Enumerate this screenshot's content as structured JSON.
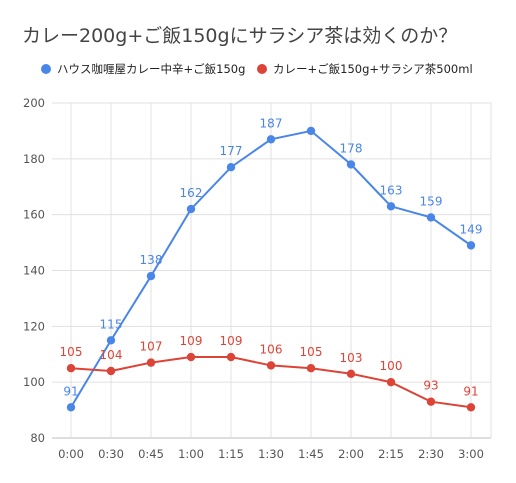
{
  "chart_data": {
    "type": "line",
    "title": "カレー200g+ご飯150gにサラシア茶は効くのか？",
    "xlabel": "",
    "ylabel": "",
    "categories": [
      "0:00",
      "0:30",
      "0:45",
      "1:00",
      "1:15",
      "1:30",
      "1:45",
      "2:00",
      "2:15",
      "2:30",
      "3:00"
    ],
    "ylim": [
      80,
      200
    ],
    "yticks": [
      80,
      100,
      120,
      140,
      160,
      180,
      200
    ],
    "grid": true,
    "legend_position": "top",
    "series": [
      {
        "name": "ハウス咖喱屋カレー中辛+ご飯150g",
        "color": "#4a86e8",
        "values": [
          91,
          115,
          138,
          162,
          177,
          187,
          190,
          178,
          163,
          159,
          149
        ],
        "labels": [
          "91",
          "115",
          "138",
          "162",
          "177",
          "187",
          "",
          "178",
          "163",
          "159",
          "149"
        ]
      },
      {
        "name": "カレー+ご飯150g+サラシア茶500ml",
        "color": "#db4437",
        "values": [
          105,
          104,
          107,
          109,
          109,
          106,
          105,
          103,
          100,
          93,
          91
        ],
        "labels": [
          "105",
          "104",
          "107",
          "109",
          "109",
          "106",
          "105",
          "103",
          "100",
          "93",
          "91"
        ]
      }
    ]
  }
}
